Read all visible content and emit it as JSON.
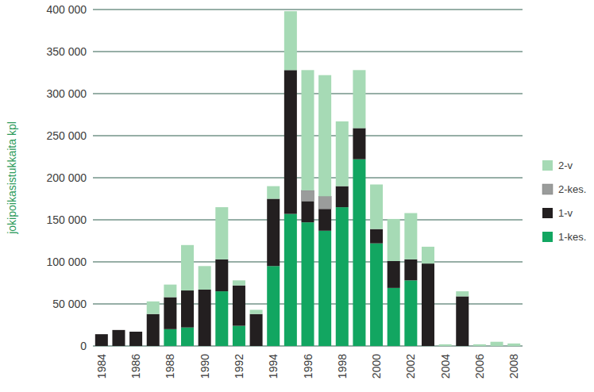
{
  "chart_data": {
    "type": "bar",
    "stacked": true,
    "grid": true,
    "legend": "right",
    "y_label": "jokipoikasistukkaita kpl",
    "categories": [
      "1984",
      null,
      "1986",
      null,
      "1988",
      null,
      "1990",
      null,
      "1992",
      null,
      "1994",
      null,
      "1996",
      null,
      "1998",
      null,
      "2000",
      null,
      "2002",
      null,
      "2004",
      null,
      "2006",
      null,
      "2008"
    ],
    "ylim": [
      0,
      400000
    ],
    "yticks": [
      0,
      {
        "value": 50000,
        "label": "50 000"
      },
      {
        "value": 100000,
        "label": "100 000"
      },
      {
        "value": 150000,
        "label": "150 000"
      },
      {
        "value": 200000,
        "label": "200 000"
      },
      {
        "value": 250000,
        "label": "250 000"
      },
      {
        "value": 300000,
        "label": "300 000"
      },
      {
        "value": 350000,
        "label": "350 000"
      },
      {
        "value": 400000,
        "label": "400 000"
      }
    ],
    "series": [
      {
        "name": "1-kes.",
        "color": "#12a661",
        "values": [
          0,
          0,
          0,
          0,
          20000,
          22000,
          0,
          65000,
          24000,
          0,
          95000,
          157000,
          147000,
          137000,
          165000,
          222000,
          122000,
          69000,
          78000,
          0,
          0,
          0,
          0,
          0,
          0
        ]
      },
      {
        "name": "1-v",
        "color": "#231f20",
        "values": [
          14000,
          19000,
          17000,
          38000,
          38000,
          44000,
          67000,
          38000,
          48000,
          38000,
          80000,
          171000,
          25000,
          26000,
          25000,
          37000,
          17000,
          32000,
          25000,
          98000,
          0,
          59000,
          0,
          0,
          0
        ]
      },
      {
        "name": "2-kes.",
        "color": "#9a9c9b",
        "values": [
          0,
          0,
          0,
          0,
          0,
          0,
          0,
          0,
          0,
          0,
          0,
          0,
          13000,
          15000,
          0,
          0,
          0,
          0,
          0,
          0,
          0,
          0,
          0,
          0,
          0
        ]
      },
      {
        "name": "2-v",
        "color": "#a6dab5",
        "values": [
          0,
          0,
          0,
          15000,
          15000,
          54000,
          28000,
          62000,
          6000,
          5000,
          15000,
          70000,
          143000,
          144000,
          77000,
          69000,
          53000,
          50000,
          55000,
          20000,
          2000,
          6000,
          2000,
          5000,
          3000
        ]
      }
    ]
  }
}
